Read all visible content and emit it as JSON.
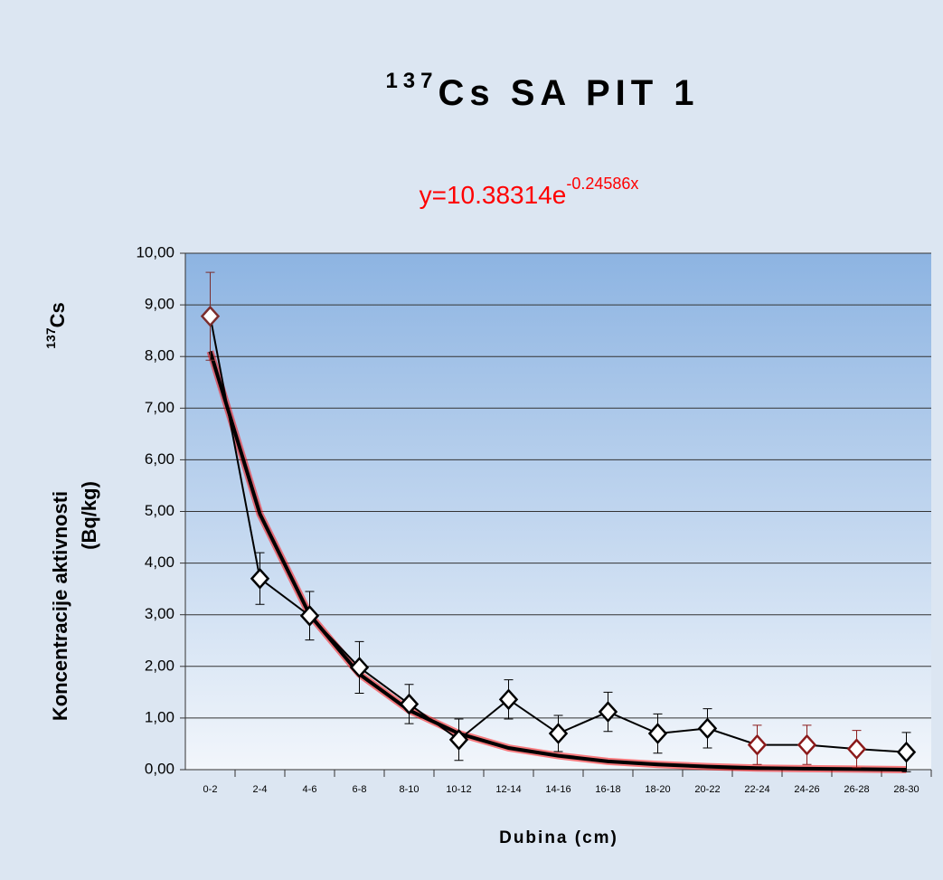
{
  "chart_data": {
    "type": "line",
    "title_superscript": "137",
    "title": "Cs SA PIT 1",
    "equation": "y=10.38314e",
    "equation_exponent": "-0.24586x",
    "y_label_superscript": "137",
    "y_label_top": "Cs",
    "y_label": "Koncentracije aktivnosti",
    "y_label_unit": "(Bq/kg)",
    "x_label": "Dubina (cm)",
    "categories": [
      "0-2",
      "2-4",
      "4-6",
      "6-8",
      "8-10",
      "10-12",
      "12-14",
      "14-16",
      "16-18",
      "18-20",
      "20-22",
      "22-24",
      "24-26",
      "26-28",
      "28-30"
    ],
    "series": [
      {
        "color": "#000000",
        "values": [
          8.78,
          3.7,
          2.98,
          1.98,
          1.27,
          0.58,
          1.36,
          0.7,
          1.12,
          0.7,
          0.8,
          0.48,
          0.48,
          0.4,
          0.34
        ],
        "errors": [
          0.85,
          0.5,
          0.47,
          0.5,
          0.38,
          0.4,
          0.38,
          0.35,
          0.38,
          0.38,
          0.38,
          0.38,
          0.38,
          0.36,
          0.38
        ],
        "point_colors": [
          "#7b2d2d",
          "#000000",
          "#000000",
          "#000000",
          "#000000",
          "#000000",
          "#000000",
          "#000000",
          "#000000",
          "#000000",
          "#000000",
          "#8b1a1a",
          "#8b1a1a",
          "#8b1a1a",
          "#000000"
        ]
      }
    ],
    "trendline": {
      "color": "#000000",
      "highlight": "#ff0000",
      "values": [
        8.1,
        4.95,
        3.0,
        1.85,
        1.15,
        0.7,
        0.42,
        0.27,
        0.16,
        0.1,
        0.06,
        0.03,
        0.02,
        0.01,
        0.0
      ]
    },
    "ylim": [
      0,
      10
    ],
    "yticks": [
      {
        "value": 0,
        "label": "0,00"
      },
      {
        "value": 1,
        "label": "1,00"
      },
      {
        "value": 2,
        "label": "2,00"
      },
      {
        "value": 3,
        "label": "3,00"
      },
      {
        "value": 4,
        "label": "4,00"
      },
      {
        "value": 5,
        "label": "5,00"
      },
      {
        "value": 6,
        "label": "6,00"
      },
      {
        "value": 7,
        "label": "7,00"
      },
      {
        "value": 8,
        "label": "8,00"
      },
      {
        "value": 9,
        "label": "9,00"
      },
      {
        "value": 10,
        "label": "10,00"
      }
    ],
    "grid": true
  }
}
